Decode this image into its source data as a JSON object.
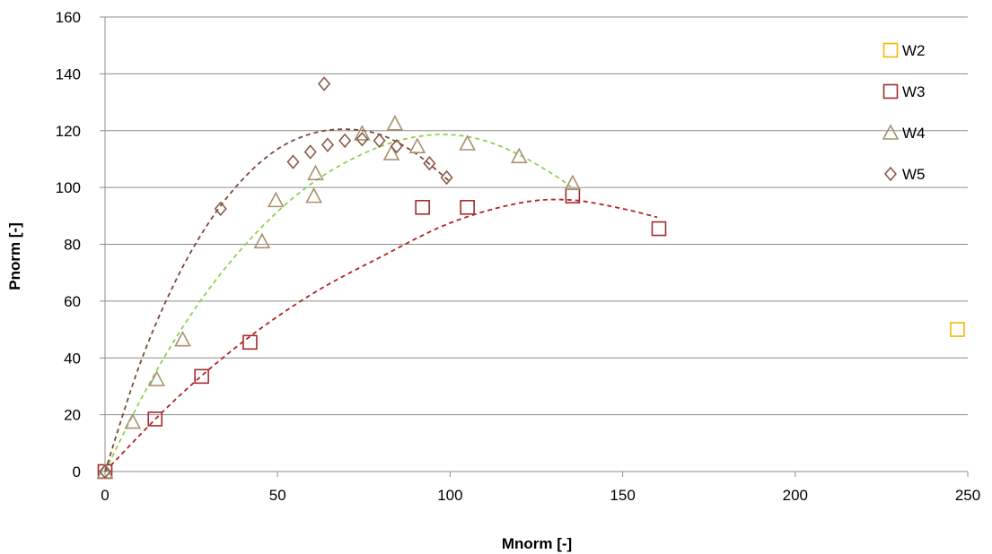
{
  "chart_data": {
    "type": "scatter",
    "xlabel": "Mnorm [-]",
    "ylabel": "Pnorm [-]",
    "xlim": [
      0,
      250
    ],
    "ylim": [
      0,
      160
    ],
    "x_ticks": [
      0,
      50,
      100,
      150,
      200,
      250
    ],
    "y_ticks": [
      0,
      20,
      40,
      60,
      80,
      100,
      120,
      140,
      160
    ],
    "grid": "horizontal",
    "legend_position": "right",
    "series": [
      {
        "name": "W2",
        "marker": "square",
        "color": "#F5B800",
        "points": [
          [
            247,
            50
          ]
        ]
      },
      {
        "name": "W3",
        "marker": "square",
        "color": "#A52A2A",
        "points": [
          [
            0,
            0
          ],
          [
            14.5,
            18.5
          ],
          [
            28,
            33.5
          ],
          [
            42,
            45.5
          ],
          [
            92,
            93
          ],
          [
            105,
            93
          ],
          [
            135.5,
            97
          ],
          [
            160.5,
            85.5
          ]
        ],
        "trend": {
          "color": "#B22222",
          "x_range": [
            0,
            160
          ],
          "curve": [
            [
              0,
              0
            ],
            [
              20,
              24.9
            ],
            [
              40,
              45.7
            ],
            [
              60,
              62.5
            ],
            [
              80,
              75.6
            ],
            [
              100,
              87.5
            ],
            [
              120,
              94.5
            ],
            [
              135,
              95.6
            ],
            [
              150,
              92.5
            ],
            [
              160,
              89.5
            ]
          ]
        }
      },
      {
        "name": "W4",
        "marker": "triangle",
        "color": "#A89070",
        "points": [
          [
            0,
            0
          ],
          [
            8,
            17.5
          ],
          [
            15,
            32.5
          ],
          [
            22.5,
            46.5
          ],
          [
            45.5,
            81
          ],
          [
            49.5,
            95.5
          ],
          [
            60.5,
            97
          ],
          [
            61,
            105
          ],
          [
            74.5,
            119
          ],
          [
            83,
            112
          ],
          [
            84,
            122.5
          ],
          [
            90.5,
            114.5
          ],
          [
            105,
            115.5
          ],
          [
            120,
            111
          ],
          [
            135.5,
            101.5
          ]
        ],
        "trend": {
          "color": "#8FD14F",
          "x_range": [
            0,
            135
          ],
          "curve": [
            [
              0,
              0
            ],
            [
              10,
              24.5
            ],
            [
              20,
              46
            ],
            [
              30,
              64
            ],
            [
              40,
              79
            ],
            [
              50,
              91.5
            ],
            [
              60,
              101.5
            ],
            [
              70,
              109
            ],
            [
              80,
              114.5
            ],
            [
              90,
              117.8
            ],
            [
              100,
              118.6
            ],
            [
              110,
              116.5
            ],
            [
              120,
              111.5
            ],
            [
              130,
              104.5
            ],
            [
              135,
              100.2
            ]
          ]
        }
      },
      {
        "name": "W5",
        "marker": "diamond",
        "color": "#8B5A4A",
        "points": [
          [
            0,
            0
          ],
          [
            33.5,
            92.5
          ],
          [
            54.5,
            109
          ],
          [
            59.5,
            112.5
          ],
          [
            63.5,
            136.5
          ],
          [
            64.5,
            115
          ],
          [
            69.5,
            116.5
          ],
          [
            74.5,
            117
          ],
          [
            79.5,
            116.5
          ],
          [
            84.5,
            114.5
          ],
          [
            94,
            108.5
          ],
          [
            99,
            103.5
          ]
        ],
        "trend": {
          "color": "#7A4A3A",
          "x_range": [
            0,
            100
          ],
          "curve": [
            [
              0,
              0
            ],
            [
              10,
              37.5
            ],
            [
              20,
              66
            ],
            [
              30,
              87.5
            ],
            [
              40,
              103
            ],
            [
              50,
              113.5
            ],
            [
              60,
              119
            ],
            [
              70,
              120.5
            ],
            [
              80,
              118.5
            ],
            [
              90,
              112
            ],
            [
              100,
              102
            ]
          ]
        }
      }
    ]
  }
}
